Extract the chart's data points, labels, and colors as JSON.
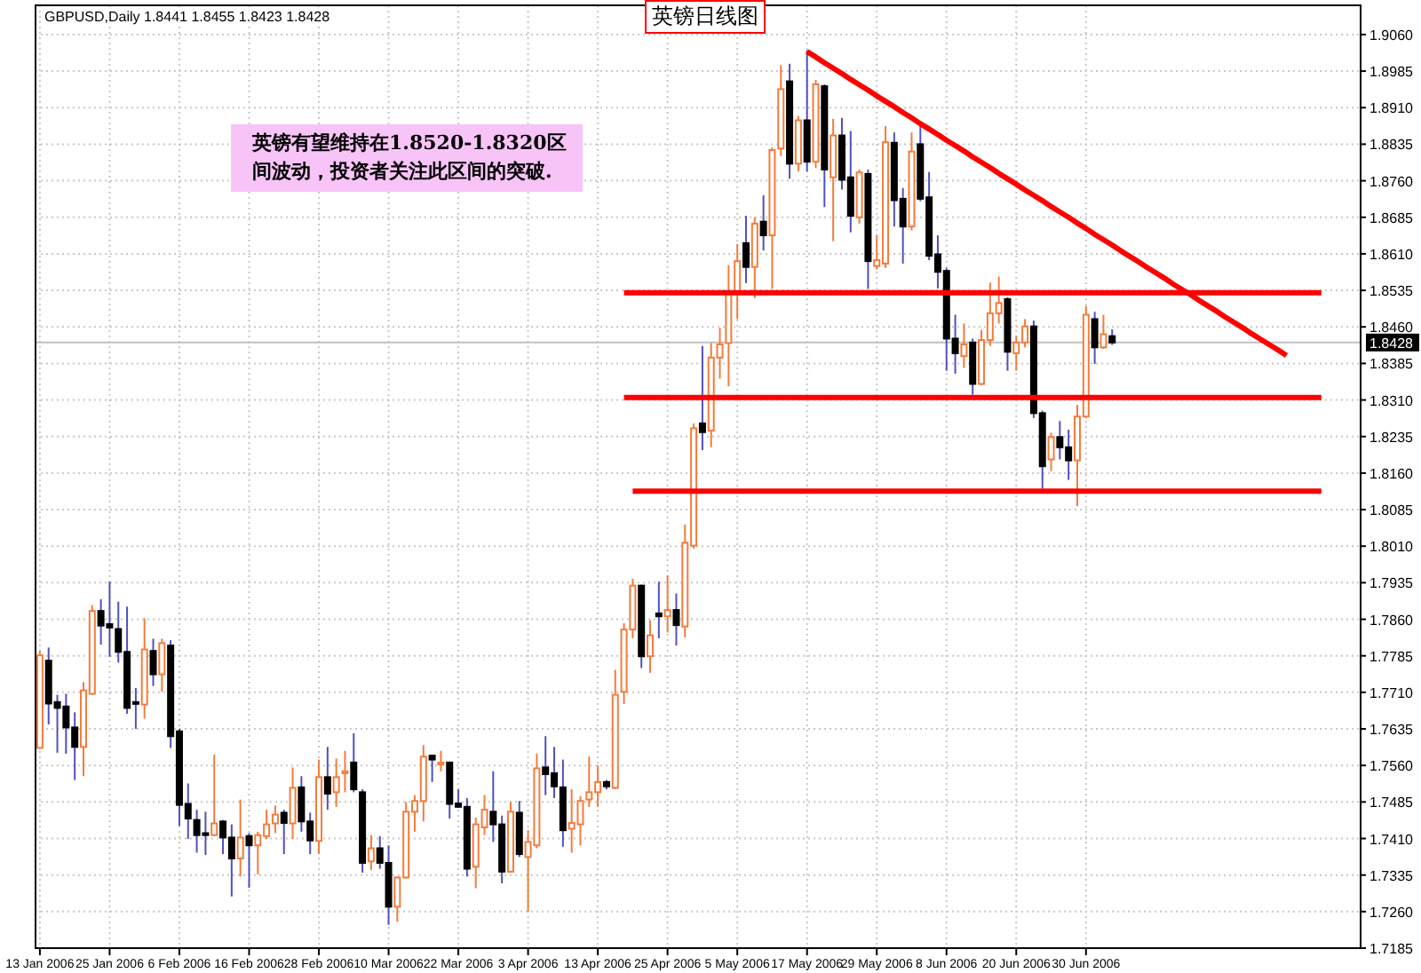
{
  "chart_data": {
    "type": "candlestick",
    "title": "英镑日线图",
    "subtitle": "GBPUSD,Daily 1.8441 1.8455 1.8423 1.8428",
    "annotations": [
      "英镑有望维持在1.8520-1.8320区间波动，投资者关注此区间的突破."
    ],
    "ylim": [
      1.7185,
      1.912
    ],
    "grid": true,
    "categories": [
      "13 Jan 2006",
      null,
      null,
      null,
      null,
      null,
      null,
      null,
      "25 Jan 2006",
      null,
      null,
      null,
      null,
      null,
      null,
      null,
      "6 Feb 2006",
      null,
      null,
      null,
      null,
      null,
      null,
      null,
      "16 Feb 2006",
      null,
      null,
      null,
      null,
      null,
      null,
      null,
      "28 Feb 2006",
      null,
      null,
      null,
      null,
      null,
      null,
      null,
      "10 Mar 2006",
      null,
      null,
      null,
      null,
      null,
      null,
      null,
      "22 Mar 2006",
      null,
      null,
      null,
      null,
      null,
      null,
      null,
      "3 Apr 2006",
      null,
      null,
      null,
      null,
      null,
      null,
      null,
      "13 Apr 2006",
      null,
      null,
      null,
      null,
      null,
      null,
      null,
      "25 Apr 2006",
      null,
      null,
      null,
      null,
      null,
      null,
      null,
      "5 May 2006",
      null,
      null,
      null,
      null,
      null,
      null,
      null,
      "17 May 2006",
      null,
      null,
      null,
      null,
      null,
      null,
      null,
      "29 May 2006",
      null,
      null,
      null,
      null,
      null,
      null,
      null,
      "8 Jun 2006",
      null,
      null,
      null,
      null,
      null,
      null,
      null,
      "20 Jun 2006",
      null,
      null,
      null,
      null,
      null,
      null,
      null,
      "30 Jun 2006",
      null,
      null,
      null,
      null,
      null,
      null,
      null,
      null,
      null,
      null,
      null,
      null,
      null,
      null,
      null,
      null,
      null,
      null,
      null,
      null,
      null,
      null,
      null,
      null,
      null,
      null,
      null,
      null,
      null,
      null,
      null
    ],
    "yticks": [
      {
        "value": 1.906,
        "label": "1.9060"
      },
      {
        "value": 1.8985,
        "label": "1.8985"
      },
      {
        "value": 1.891,
        "label": "1.8910"
      },
      {
        "value": 1.8835,
        "label": "1.8835"
      },
      {
        "value": 1.876,
        "label": "1.8760"
      },
      {
        "value": 1.8685,
        "label": "1.8685"
      },
      {
        "value": 1.861,
        "label": "1.8610"
      },
      {
        "value": 1.8535,
        "label": "1.8535"
      },
      {
        "value": 1.846,
        "label": "1.8460"
      },
      {
        "value": 1.8385,
        "label": "1.8385"
      },
      {
        "value": 1.831,
        "label": "1.8310"
      },
      {
        "value": 1.8235,
        "label": "1.8235"
      },
      {
        "value": 1.816,
        "label": "1.8160"
      },
      {
        "value": 1.8085,
        "label": "1.8085"
      },
      {
        "value": 1.801,
        "label": "1.8010"
      },
      {
        "value": 1.7935,
        "label": "1.7935"
      },
      {
        "value": 1.786,
        "label": "1.7860"
      },
      {
        "value": 1.7785,
        "label": "1.7785"
      },
      {
        "value": 1.771,
        "label": "1.7710"
      },
      {
        "value": 1.7635,
        "label": "1.7635"
      },
      {
        "value": 1.756,
        "label": "1.7560"
      },
      {
        "value": 1.7485,
        "label": "1.7485"
      },
      {
        "value": 1.741,
        "label": "1.7410"
      },
      {
        "value": 1.7335,
        "label": "1.7335"
      },
      {
        "value": 1.726,
        "label": "1.7260"
      },
      {
        "value": 1.7185,
        "label": "1.7185"
      }
    ],
    "ref_lines": [
      {
        "axis": "y",
        "value": 1.8428,
        "label": "1.8428",
        "color": "#c0c0c0"
      }
    ],
    "ohlc": [
      [
        1.7596,
        1.7795,
        1.7594,
        1.7786
      ],
      [
        1.7775,
        1.7802,
        1.7644,
        1.7687
      ],
      [
        1.769,
        1.7705,
        1.7586,
        1.7678
      ],
      [
        1.7681,
        1.7707,
        1.7584,
        1.7638
      ],
      [
        1.7638,
        1.7669,
        1.753,
        1.7598
      ],
      [
        1.7598,
        1.7731,
        1.7538,
        1.7714
      ],
      [
        1.7707,
        1.7889,
        1.7705,
        1.7877
      ],
      [
        1.7877,
        1.7901,
        1.7808,
        1.7847
      ],
      [
        1.785,
        1.7937,
        1.7783,
        1.7843
      ],
      [
        1.784,
        1.7896,
        1.7771,
        1.7793
      ],
      [
        1.7793,
        1.7886,
        1.7666,
        1.7678
      ],
      [
        1.769,
        1.7719,
        1.7635,
        1.7687
      ],
      [
        1.7685,
        1.7862,
        1.7656,
        1.7798
      ],
      [
        1.7795,
        1.782,
        1.7723,
        1.7747
      ],
      [
        1.7747,
        1.782,
        1.7711,
        1.7811
      ],
      [
        1.7806,
        1.7817,
        1.7596,
        1.762
      ],
      [
        1.763,
        1.7635,
        1.7436,
        1.7479
      ],
      [
        1.7481,
        1.7523,
        1.7409,
        1.7451
      ],
      [
        1.7448,
        1.7469,
        1.7381,
        1.7417
      ],
      [
        1.7421,
        1.7465,
        1.7376,
        1.7417
      ],
      [
        1.7417,
        1.7582,
        1.7415,
        1.7441
      ],
      [
        1.7445,
        1.7448,
        1.7378,
        1.7412
      ],
      [
        1.7412,
        1.7439,
        1.7291,
        1.7369
      ],
      [
        1.7369,
        1.749,
        1.7332,
        1.7412
      ],
      [
        1.7415,
        1.7421,
        1.7309,
        1.7396
      ],
      [
        1.7396,
        1.7424,
        1.7336,
        1.7417
      ],
      [
        1.7415,
        1.7469,
        1.7409,
        1.7439
      ],
      [
        1.7441,
        1.7478,
        1.7421,
        1.7459
      ],
      [
        1.7463,
        1.7469,
        1.7378,
        1.7442
      ],
      [
        1.7441,
        1.7556,
        1.7409,
        1.7514
      ],
      [
        1.7515,
        1.7538,
        1.7424,
        1.7445
      ],
      [
        1.7445,
        1.7463,
        1.7378,
        1.7406
      ],
      [
        1.7405,
        1.7572,
        1.7378,
        1.7536
      ],
      [
        1.7536,
        1.7598,
        1.7469,
        1.7502
      ],
      [
        1.7505,
        1.7574,
        1.7475,
        1.7536
      ],
      [
        1.7544,
        1.759,
        1.7505,
        1.7548
      ],
      [
        1.7566,
        1.7626,
        1.7505,
        1.7511
      ],
      [
        1.7505,
        1.7511,
        1.734,
        1.736
      ],
      [
        1.7363,
        1.7417,
        1.7345,
        1.739
      ],
      [
        1.739,
        1.7415,
        1.7348,
        1.736
      ],
      [
        1.736,
        1.7396,
        1.7233,
        1.727
      ],
      [
        1.727,
        1.7332,
        1.7239,
        1.733
      ],
      [
        1.733,
        1.7485,
        1.7328,
        1.7465
      ],
      [
        1.7465,
        1.7499,
        1.7424,
        1.7487
      ],
      [
        1.7487,
        1.7602,
        1.7445,
        1.7578
      ],
      [
        1.758,
        1.7582,
        1.7526,
        1.7572
      ],
      [
        1.7562,
        1.759,
        1.7548,
        1.7566
      ],
      [
        1.7566,
        1.7566,
        1.7451,
        1.7481
      ],
      [
        1.7482,
        1.7511,
        1.7473,
        1.7475
      ],
      [
        1.7475,
        1.7493,
        1.7332,
        1.7348
      ],
      [
        1.7352,
        1.7453,
        1.7308,
        1.7439
      ],
      [
        1.7433,
        1.7499,
        1.7417,
        1.7469
      ],
      [
        1.7465,
        1.7548,
        1.7403,
        1.7439
      ],
      [
        1.7439,
        1.7457,
        1.7318,
        1.7342
      ],
      [
        1.7342,
        1.7485,
        1.734,
        1.7465
      ],
      [
        1.7463,
        1.7487,
        1.7372,
        1.7378
      ],
      [
        1.7372,
        1.7427,
        1.726,
        1.7403
      ],
      [
        1.7396,
        1.7584,
        1.739,
        1.7554
      ],
      [
        1.7556,
        1.762,
        1.7499,
        1.7542
      ],
      [
        1.7544,
        1.7598,
        1.7493,
        1.7517
      ],
      [
        1.7515,
        1.7572,
        1.7393,
        1.7427
      ],
      [
        1.743,
        1.7511,
        1.7381,
        1.7442
      ],
      [
        1.7439,
        1.7497,
        1.7396,
        1.7487
      ],
      [
        1.749,
        1.7578,
        1.7475,
        1.7505
      ],
      [
        1.7505,
        1.756,
        1.7475,
        1.7526
      ],
      [
        1.7526,
        1.753,
        1.7511,
        1.7517
      ],
      [
        1.7514,
        1.7756,
        1.7511,
        1.7705
      ],
      [
        1.7711,
        1.7852,
        1.7686,
        1.7839
      ],
      [
        1.7839,
        1.7943,
        1.7821,
        1.7929
      ],
      [
        1.7929,
        1.7931,
        1.776,
        1.7784
      ],
      [
        1.7784,
        1.7858,
        1.775,
        1.7827
      ],
      [
        1.7872,
        1.7937,
        1.7821,
        1.7866
      ],
      [
        1.7866,
        1.795,
        1.7833,
        1.7879
      ],
      [
        1.7879,
        1.7913,
        1.7806,
        1.7848
      ],
      [
        1.7845,
        1.8054,
        1.7823,
        1.8017
      ],
      [
        1.8011,
        1.8262,
        1.8005,
        1.8252
      ],
      [
        1.8262,
        1.8421,
        1.8207,
        1.8244
      ],
      [
        1.8247,
        1.8427,
        1.8213,
        1.8397
      ],
      [
        1.8397,
        1.8458,
        1.8354,
        1.8424
      ],
      [
        1.8427,
        1.8587,
        1.8338,
        1.8532
      ],
      [
        1.8529,
        1.863,
        1.8476,
        1.8595
      ],
      [
        1.8632,
        1.8688,
        1.855,
        1.8583
      ],
      [
        1.8583,
        1.8685,
        1.8519,
        1.8672
      ],
      [
        1.8676,
        1.873,
        1.8617,
        1.8648
      ],
      [
        1.8648,
        1.8828,
        1.8538,
        1.8823
      ],
      [
        1.8826,
        1.8997,
        1.8811,
        1.8948
      ],
      [
        1.8964,
        1.9,
        1.8764,
        1.8795
      ],
      [
        1.8795,
        1.8893,
        1.8779,
        1.8884
      ],
      [
        1.8884,
        1.9028,
        1.8779,
        1.8799
      ],
      [
        1.8799,
        1.8967,
        1.8786,
        1.8958
      ],
      [
        1.8954,
        1.8958,
        1.8706,
        1.8783
      ],
      [
        1.8767,
        1.8887,
        1.8636,
        1.8853
      ],
      [
        1.8853,
        1.8889,
        1.8742,
        1.8762
      ],
      [
        1.8767,
        1.8862,
        1.8654,
        1.8688
      ],
      [
        1.8685,
        1.8783,
        1.8672,
        1.8777
      ],
      [
        1.8774,
        1.8783,
        1.8538,
        1.8595
      ],
      [
        1.8585,
        1.8648,
        1.8578,
        1.8597
      ],
      [
        1.859,
        1.8872,
        1.8581,
        1.8839
      ],
      [
        1.8838,
        1.8859,
        1.8666,
        1.872
      ],
      [
        1.8723,
        1.8745,
        1.859,
        1.8666
      ],
      [
        1.8666,
        1.8859,
        1.8658,
        1.882
      ],
      [
        1.8835,
        1.8875,
        1.8718,
        1.8723
      ],
      [
        1.8726,
        1.8778,
        1.8597,
        1.8606
      ],
      [
        1.8609,
        1.8648,
        1.8539,
        1.8573
      ],
      [
        1.8575,
        1.8581,
        1.837,
        1.8436
      ],
      [
        1.8436,
        1.8485,
        1.8364,
        1.8406
      ],
      [
        1.84,
        1.8467,
        1.8376,
        1.8424
      ],
      [
        1.8428,
        1.8436,
        1.8321,
        1.8343
      ],
      [
        1.8343,
        1.8454,
        1.834,
        1.8433
      ],
      [
        1.8433,
        1.8551,
        1.8421,
        1.8488
      ],
      [
        1.8488,
        1.8563,
        1.8467,
        1.8509
      ],
      [
        1.8517,
        1.8521,
        1.837,
        1.8409
      ],
      [
        1.8406,
        1.8442,
        1.837,
        1.8428
      ],
      [
        1.8428,
        1.8476,
        1.8418,
        1.8461
      ],
      [
        1.8461,
        1.8473,
        1.8273,
        1.8283
      ],
      [
        1.8283,
        1.8288,
        1.8128,
        1.8174
      ],
      [
        1.8188,
        1.8243,
        1.8164,
        1.8234
      ],
      [
        1.8234,
        1.8267,
        1.8188,
        1.8213
      ],
      [
        1.8213,
        1.8249,
        1.8146,
        1.8186
      ],
      [
        1.8186,
        1.83,
        1.8092,
        1.8276
      ],
      [
        1.8276,
        1.8503,
        1.8273,
        1.8485
      ],
      [
        1.8476,
        1.8491,
        1.8384,
        1.8418
      ],
      [
        1.8418,
        1.8485,
        1.8415,
        1.8445
      ],
      [
        1.8441,
        1.8455,
        1.8423,
        1.8428
      ],
      null,
      null,
      null,
      null,
      null,
      null,
      null,
      null,
      null,
      null,
      null,
      null,
      null,
      null,
      null,
      null,
      null,
      null,
      null,
      null,
      null,
      null,
      null,
      null,
      null,
      null,
      null,
      null
    ],
    "series": [
      {
        "type": "line",
        "color": "#ff0000",
        "values": [
          null,
          null,
          null,
          null,
          null,
          null,
          null,
          null,
          null,
          null,
          null,
          null,
          null,
          null,
          null,
          null,
          null,
          null,
          null,
          null,
          null,
          null,
          null,
          null,
          null,
          null,
          null,
          null,
          null,
          null,
          null,
          null,
          null,
          null,
          null,
          null,
          null,
          null,
          null,
          null,
          null,
          null,
          null,
          null,
          null,
          null,
          null,
          null,
          null,
          null,
          null,
          null,
          null,
          null,
          null,
          null,
          null,
          null,
          null,
          null,
          null,
          null,
          null,
          null,
          null,
          null,
          null,
          null,
          null,
          null,
          null,
          null,
          null,
          null,
          null,
          null,
          null,
          null,
          null,
          null,
          null,
          null,
          null,
          null,
          null,
          null,
          null,
          null,
          1.9025,
          1.9014,
          1.9002,
          1.8991,
          1.898,
          1.8968,
          1.8957,
          1.8946,
          1.8934,
          1.8923,
          1.8912,
          1.89,
          1.8889,
          1.8877,
          1.8866,
          1.8855,
          1.8843,
          1.8832,
          1.8821,
          1.8809,
          1.8798,
          1.8787,
          1.8775,
          1.8764,
          1.8753,
          1.8741,
          1.873,
          1.8719,
          1.8707,
          1.8696,
          1.8685,
          1.8673,
          1.8662,
          1.865,
          1.8639,
          1.8628,
          1.8616,
          1.8605,
          1.8594,
          1.8582,
          1.8571,
          1.856,
          1.8548,
          1.8537,
          1.8526,
          1.8514,
          1.8503,
          1.8492,
          1.848,
          1.8469,
          1.8458,
          1.8446,
          1.8435,
          1.8424,
          1.8413,
          1.8401,
          null,
          null,
          null,
          null,
          null,
          null,
          null,
          null
        ]
      },
      {
        "type": "line",
        "color": "#ff0000",
        "values": [
          null,
          null,
          null,
          null,
          null,
          null,
          null,
          null,
          null,
          null,
          null,
          null,
          null,
          null,
          null,
          null,
          null,
          null,
          null,
          null,
          null,
          null,
          null,
          null,
          null,
          null,
          null,
          null,
          null,
          null,
          null,
          null,
          null,
          null,
          null,
          null,
          null,
          null,
          null,
          null,
          null,
          null,
          null,
          null,
          null,
          null,
          null,
          null,
          null,
          null,
          null,
          null,
          null,
          null,
          null,
          null,
          null,
          null,
          null,
          null,
          null,
          null,
          null,
          null,
          null,
          null,
          null,
          1.853,
          1.853,
          1.853,
          1.853,
          1.853,
          1.853,
          1.853,
          1.853,
          1.853,
          1.853,
          1.853,
          1.853,
          1.853,
          1.853,
          1.853,
          1.853,
          1.853,
          1.853,
          1.853,
          1.853,
          1.853,
          1.853,
          1.853,
          1.853,
          1.853,
          1.853,
          1.853,
          1.853,
          1.853,
          1.853,
          1.853,
          1.853,
          1.853,
          1.853,
          1.853,
          1.853,
          1.853,
          1.853,
          1.853,
          1.853,
          1.853,
          1.853,
          1.853,
          1.853,
          1.853,
          1.853,
          1.853,
          1.853,
          1.853,
          1.853,
          1.853,
          1.853,
          1.853,
          1.853,
          1.853,
          1.853,
          1.853,
          1.853,
          1.853,
          1.853,
          1.853,
          1.853,
          1.853,
          1.853,
          1.853,
          1.853,
          1.853,
          1.853,
          1.853,
          1.853,
          1.853,
          1.853,
          1.853,
          1.853,
          1.853,
          1.853,
          1.853,
          1.853,
          1.853,
          1.853,
          1.853,
          null,
          null,
          null,
          null
        ]
      },
      {
        "type": "line",
        "color": "#ff0000",
        "values": [
          null,
          null,
          null,
          null,
          null,
          null,
          null,
          null,
          null,
          null,
          null,
          null,
          null,
          null,
          null,
          null,
          null,
          null,
          null,
          null,
          null,
          null,
          null,
          null,
          null,
          null,
          null,
          null,
          null,
          null,
          null,
          null,
          null,
          null,
          null,
          null,
          null,
          null,
          null,
          null,
          null,
          null,
          null,
          null,
          null,
          null,
          null,
          null,
          null,
          null,
          null,
          null,
          null,
          null,
          null,
          null,
          null,
          null,
          null,
          null,
          null,
          null,
          null,
          null,
          null,
          null,
          null,
          1.8315,
          1.8315,
          1.8315,
          1.8315,
          1.8315,
          1.8315,
          1.8315,
          1.8315,
          1.8315,
          1.8315,
          1.8315,
          1.8315,
          1.8315,
          1.8315,
          1.8315,
          1.8315,
          1.8315,
          1.8315,
          1.8315,
          1.8315,
          1.8315,
          1.8315,
          1.8315,
          1.8315,
          1.8315,
          1.8315,
          1.8315,
          1.8315,
          1.8315,
          1.8315,
          1.8315,
          1.8315,
          1.8315,
          1.8315,
          1.8315,
          1.8315,
          1.8315,
          1.8315,
          1.8315,
          1.8315,
          1.8315,
          1.8315,
          1.8315,
          1.8315,
          1.8315,
          1.8315,
          1.8315,
          1.8315,
          1.8315,
          1.8315,
          1.8315,
          1.8315,
          1.8315,
          1.8315,
          1.8315,
          1.8315,
          1.8315,
          1.8315,
          1.8315,
          1.8315,
          1.8315,
          1.8315,
          1.8315,
          1.8315,
          1.8315,
          1.8315,
          1.8315,
          1.8315,
          1.8315,
          1.8315,
          1.8315,
          1.8315,
          1.8315,
          1.8315,
          1.8315,
          1.8315,
          1.8315,
          1.8315,
          1.8315,
          1.8315,
          1.8315,
          null,
          null,
          null,
          null
        ]
      },
      {
        "type": "line",
        "color": "#ff0000",
        "values": [
          null,
          null,
          null,
          null,
          null,
          null,
          null,
          null,
          null,
          null,
          null,
          null,
          null,
          null,
          null,
          null,
          null,
          null,
          null,
          null,
          null,
          null,
          null,
          null,
          null,
          null,
          null,
          null,
          null,
          null,
          null,
          null,
          null,
          null,
          null,
          null,
          null,
          null,
          null,
          null,
          null,
          null,
          null,
          null,
          null,
          null,
          null,
          null,
          null,
          null,
          null,
          null,
          null,
          null,
          null,
          null,
          null,
          null,
          null,
          null,
          null,
          null,
          null,
          null,
          null,
          null,
          null,
          null,
          1.8123,
          1.8123,
          1.8123,
          1.8123,
          1.8123,
          1.8123,
          1.8123,
          1.8123,
          1.8123,
          1.8123,
          1.8123,
          1.8123,
          1.8123,
          1.8123,
          1.8123,
          1.8123,
          1.8123,
          1.8123,
          1.8123,
          1.8123,
          1.8123,
          1.8123,
          1.8123,
          1.8123,
          1.8123,
          1.8123,
          1.8123,
          1.8123,
          1.8123,
          1.8123,
          1.8123,
          1.8123,
          1.8123,
          1.8123,
          1.8123,
          1.8123,
          1.8123,
          1.8123,
          1.8123,
          1.8123,
          1.8123,
          1.8123,
          1.8123,
          1.8123,
          1.8123,
          1.8123,
          1.8123,
          1.8123,
          1.8123,
          1.8123,
          1.8123,
          1.8123,
          1.8123,
          1.8123,
          1.8123,
          1.8123,
          1.8123,
          1.8123,
          1.8123,
          1.8123,
          1.8123,
          1.8123,
          1.8123,
          1.8123,
          1.8123,
          1.8123,
          1.8123,
          1.8123,
          1.8123,
          1.8123,
          1.8123,
          1.8123,
          1.8123,
          1.8123,
          1.8123,
          1.8123,
          1.8123,
          1.8123,
          1.8123,
          1.8123,
          null,
          null,
          null,
          null
        ]
      }
    ]
  }
}
